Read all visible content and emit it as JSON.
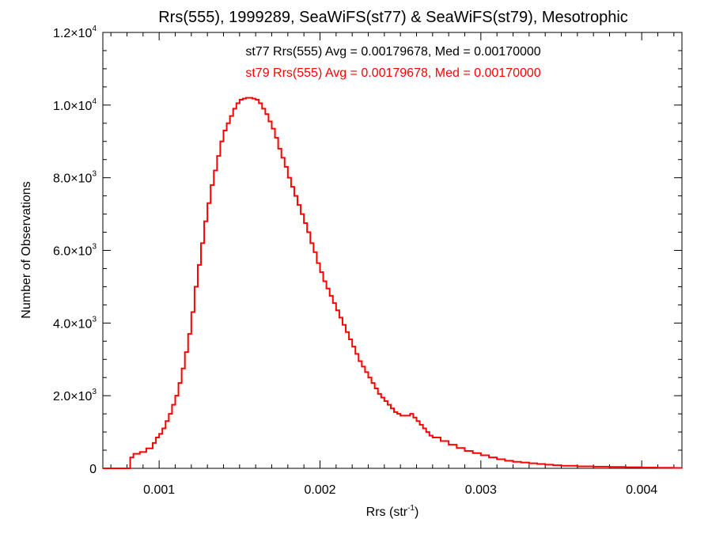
{
  "chart_data": {
    "type": "line",
    "style": "histogram-step",
    "title": "Rrs(555), 1999289, SeaWiFS(st77) & SeaWiFS(st79), Mesotrophic",
    "xlabel": {
      "main": "Rrs (str",
      "sup": "-1",
      "tail": ")"
    },
    "ylabel": "Number of Observations",
    "xlim": [
      0.00065,
      0.00425
    ],
    "ylim": [
      0,
      12000
    ],
    "grid": false,
    "x_ticks": [
      {
        "value": 0.001,
        "label": "0.001"
      },
      {
        "value": 0.002,
        "label": "0.002"
      },
      {
        "value": 0.003,
        "label": "0.003"
      },
      {
        "value": 0.004,
        "label": "0.004"
      }
    ],
    "y_ticks": [
      {
        "value": 0,
        "mant": "0",
        "exp": ""
      },
      {
        "value": 2000,
        "mant": "2.0×10",
        "exp": "3"
      },
      {
        "value": 4000,
        "mant": "4.0×10",
        "exp": "3"
      },
      {
        "value": 6000,
        "mant": "6.0×10",
        "exp": "3"
      },
      {
        "value": 8000,
        "mant": "8.0×10",
        "exp": "3"
      },
      {
        "value": 10000,
        "mant": "1.0×10",
        "exp": "4"
      },
      {
        "value": 12000,
        "mant": "1.2×10",
        "exp": "4"
      }
    ],
    "annotations": [
      {
        "text": "st77 Rrs(555) Avg = 0.00179678, Med = 0.00170000",
        "color": "#000000"
      },
      {
        "text": "st79 Rrs(555) Avg = 0.00179678, Med = 0.00170000",
        "color": "#ff0000"
      }
    ],
    "series": [
      {
        "color": "#ff0000",
        "x": [
          0.00065,
          0.0008,
          0.00082,
          0.00084,
          0.00088,
          0.00092,
          0.00096,
          0.00098,
          0.001,
          0.00102,
          0.00104,
          0.00106,
          0.00108,
          0.0011,
          0.00112,
          0.00114,
          0.00116,
          0.00118,
          0.0012,
          0.00122,
          0.00124,
          0.00126,
          0.00128,
          0.0013,
          0.00132,
          0.00134,
          0.00136,
          0.00138,
          0.0014,
          0.00142,
          0.00144,
          0.00146,
          0.00148,
          0.0015,
          0.00152,
          0.00154,
          0.00156,
          0.00158,
          0.0016,
          0.00162,
          0.00164,
          0.00166,
          0.00168,
          0.0017,
          0.00172,
          0.00174,
          0.00176,
          0.00178,
          0.0018,
          0.00182,
          0.00184,
          0.00186,
          0.00188,
          0.0019,
          0.00192,
          0.00194,
          0.00196,
          0.00198,
          0.002,
          0.00202,
          0.00204,
          0.00206,
          0.00208,
          0.0021,
          0.00212,
          0.00214,
          0.00216,
          0.00218,
          0.0022,
          0.00222,
          0.00224,
          0.00226,
          0.00228,
          0.0023,
          0.00232,
          0.00234,
          0.00236,
          0.00238,
          0.0024,
          0.00242,
          0.00244,
          0.00246,
          0.00248,
          0.0025,
          0.00252,
          0.00254,
          0.00256,
          0.00258,
          0.0026,
          0.00262,
          0.00264,
          0.00266,
          0.00268,
          0.0027,
          0.00275,
          0.0028,
          0.00285,
          0.0029,
          0.00295,
          0.003,
          0.00305,
          0.0031,
          0.00315,
          0.0032,
          0.00325,
          0.0033,
          0.00335,
          0.0034,
          0.00345,
          0.0035,
          0.0036,
          0.0037,
          0.0038,
          0.0039,
          0.004,
          0.0041,
          0.0042
        ],
        "y": [
          0,
          0,
          300,
          400,
          450,
          550,
          700,
          850,
          950,
          1100,
          1300,
          1500,
          1750,
          2000,
          2350,
          2750,
          3200,
          3700,
          4300,
          5000,
          5600,
          6200,
          6800,
          7300,
          7800,
          8200,
          8600,
          9000,
          9300,
          9500,
          9700,
          9900,
          10050,
          10150,
          10180,
          10200,
          10200,
          10180,
          10150,
          10050,
          9900,
          9750,
          9550,
          9350,
          9100,
          8800,
          8550,
          8300,
          8000,
          7750,
          7500,
          7250,
          7000,
          6750,
          6500,
          6200,
          5950,
          5650,
          5400,
          5150,
          4950,
          4750,
          4550,
          4350,
          4150,
          3950,
          3750,
          3550,
          3350,
          3150,
          2950,
          2800,
          2650,
          2500,
          2350,
          2200,
          2050,
          1950,
          1850,
          1750,
          1650,
          1550,
          1500,
          1450,
          1450,
          1450,
          1500,
          1400,
          1300,
          1200,
          1100,
          1000,
          900,
          850,
          750,
          650,
          560,
          480,
          420,
          360,
          300,
          250,
          210,
          180,
          160,
          140,
          120,
          100,
          85,
          70,
          55,
          45,
          38,
          30,
          22,
          15,
          10
        ]
      }
    ]
  }
}
